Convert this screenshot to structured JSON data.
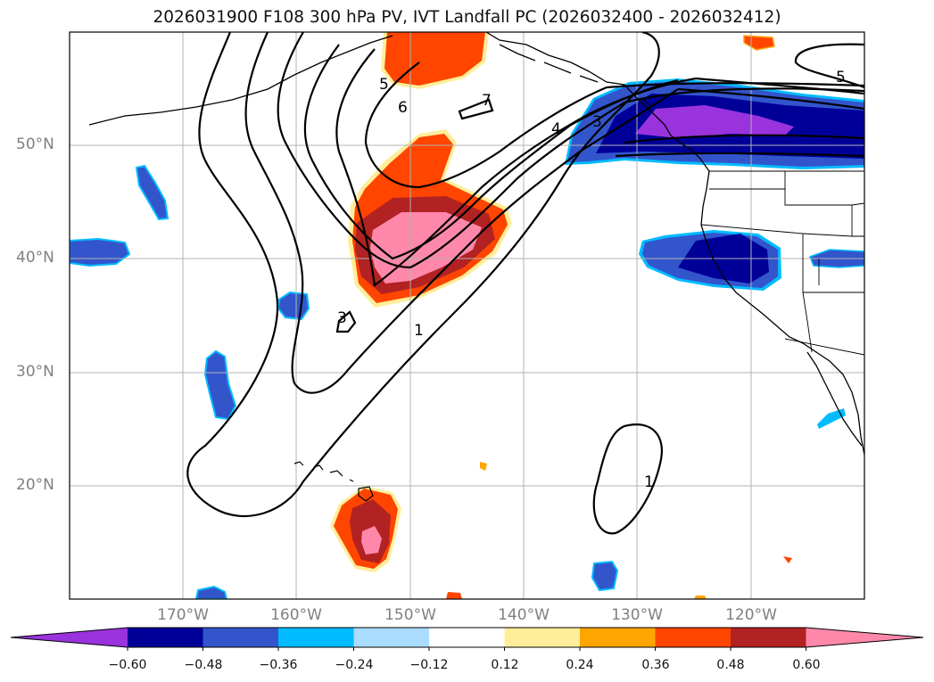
{
  "title": "2026031900 F108 300 hPa PV, IVT Landfall PC (2026032400 - 2026032412)",
  "latitude_labels": [
    "50°N",
    "40°N",
    "30°N",
    "20°N"
  ],
  "longitude_labels": [
    "170°W",
    "160°W",
    "150°W",
    "140°W",
    "130°W",
    "120°W"
  ],
  "colorbar": {
    "tick_labels": [
      "−0.60",
      "−0.48",
      "−0.36",
      "−0.24",
      "−0.12",
      "0.12",
      "0.24",
      "0.36",
      "0.48",
      "0.60"
    ],
    "colors": [
      "#9933dd",
      "#000099",
      "#3355cc",
      "#00bbff",
      "#aaddff",
      "#ffffff",
      "#ffee99",
      "#ffa500",
      "#ff4500",
      "#b22222",
      "#ff88aa"
    ],
    "extend": "both"
  },
  "contour_labels": [
    "5",
    "6",
    "7",
    "4",
    "3",
    "5",
    "3",
    "1",
    "1"
  ],
  "map": {
    "extent_lon": [
      -180,
      -110
    ],
    "extent_lat": [
      10,
      60
    ],
    "projection": "PlateCarree",
    "gridlines": true
  }
}
